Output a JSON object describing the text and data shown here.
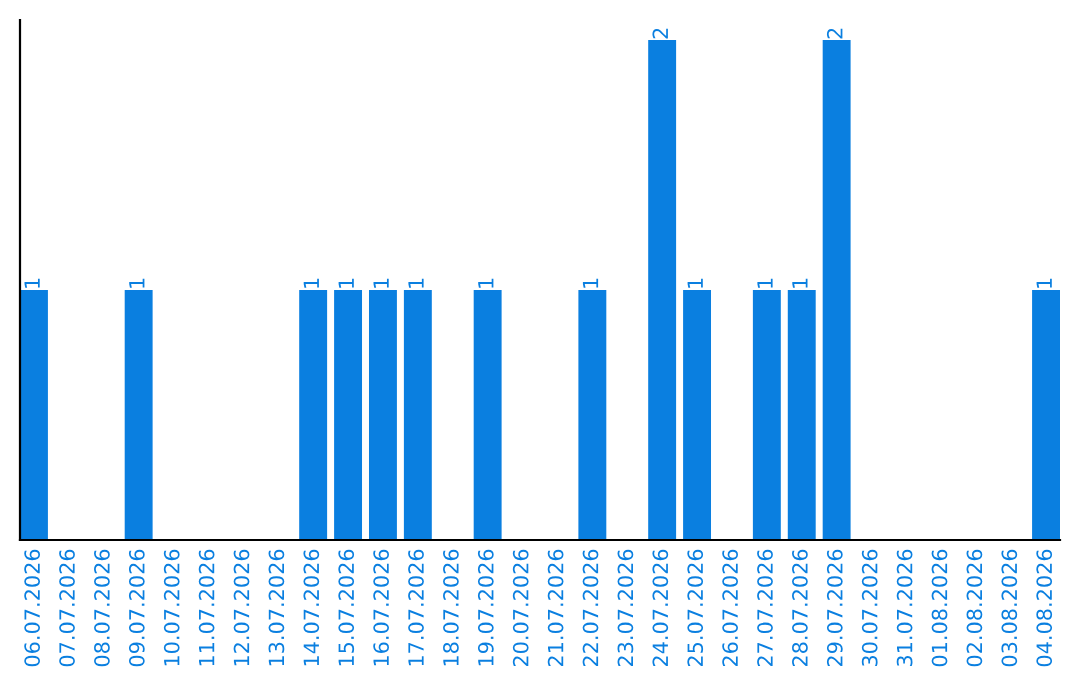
{
  "chart_data": {
    "type": "bar",
    "categories": [
      "06.07.2026",
      "07.07.2026",
      "08.07.2026",
      "09.07.2026",
      "10.07.2026",
      "11.07.2026",
      "12.07.2026",
      "13.07.2026",
      "14.07.2026",
      "15.07.2026",
      "16.07.2026",
      "17.07.2026",
      "18.07.2026",
      "19.07.2026",
      "20.07.2026",
      "21.07.2026",
      "22.07.2026",
      "23.07.2026",
      "24.07.2026",
      "25.07.2026",
      "26.07.2026",
      "27.07.2026",
      "28.07.2026",
      "29.07.2026",
      "30.07.2026",
      "31.07.2026",
      "01.08.2026",
      "02.08.2026",
      "03.08.2026",
      "04.08.2026"
    ],
    "values": [
      1,
      0,
      0,
      1,
      0,
      0,
      0,
      0,
      1,
      1,
      1,
      1,
      0,
      1,
      0,
      0,
      1,
      0,
      2,
      1,
      0,
      1,
      1,
      2,
      0,
      0,
      0,
      0,
      0,
      1
    ],
    "value_labels": [
      "1",
      null,
      null,
      "1",
      null,
      null,
      null,
      null,
      "1",
      "1",
      "1",
      "1",
      null,
      "1",
      null,
      null,
      "1",
      null,
      "2",
      "1",
      null,
      "1",
      "1",
      "2",
      null,
      null,
      null,
      null,
      null,
      "1"
    ],
    "color": "#0a7fe0",
    "ylim": [
      0,
      2.08
    ],
    "tick_labels": "x",
    "grid": false
  }
}
